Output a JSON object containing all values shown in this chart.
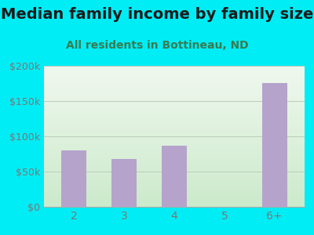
{
  "title": "Median family income by family size",
  "subtitle": "All residents in Bottineau, ND",
  "categories": [
    "2",
    "3",
    "4",
    "5",
    "6+"
  ],
  "values": [
    80000,
    68000,
    87000,
    0,
    175000
  ],
  "bar_color": "#b5a3cc",
  "bg_color": "#00edf5",
  "plot_bg_top": "#f0f8ee",
  "plot_bg_bottom": "#cceacc",
  "ylim": [
    0,
    200000
  ],
  "yticks": [
    0,
    50000,
    100000,
    150000,
    200000
  ],
  "ytick_labels": [
    "$0",
    "$50k",
    "$100k",
    "$150k",
    "$200k"
  ],
  "title_fontsize": 14,
  "subtitle_fontsize": 10,
  "title_color": "#1a1a1a",
  "subtitle_color": "#3a7a50",
  "tick_color": "#777777",
  "grid_color": "#bbccbb"
}
